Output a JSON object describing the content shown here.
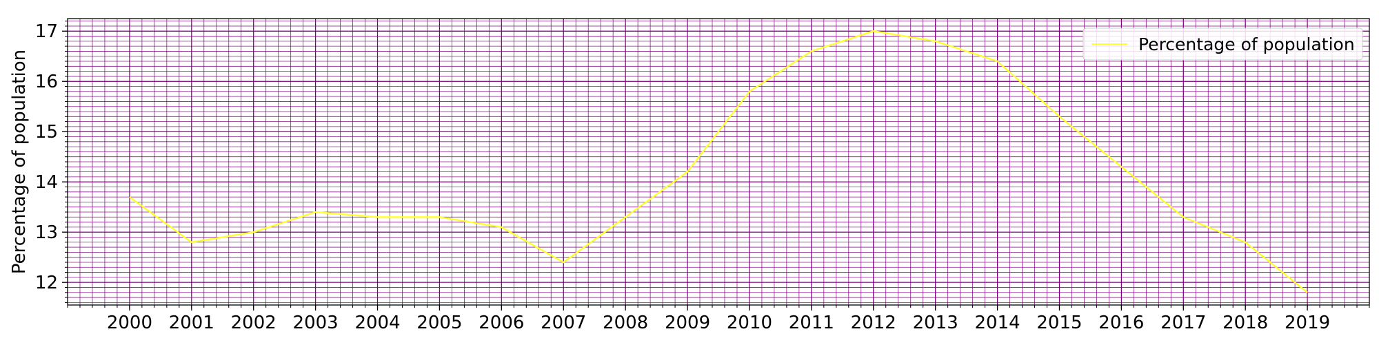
{
  "chart_data": {
    "type": "line",
    "ylabel": "Percentage of population",
    "xlabel": "",
    "categories": [
      "2000",
      "2001",
      "2002",
      "2003",
      "2004",
      "2005",
      "2006",
      "2007",
      "2008",
      "2009",
      "2010",
      "2011",
      "2012",
      "2013",
      "2014",
      "2015",
      "2016",
      "2017",
      "2018",
      "2019"
    ],
    "series": [
      {
        "name": "Percentage of population",
        "color": "#ffff33",
        "values": [
          13.7,
          12.8,
          13.0,
          13.4,
          13.3,
          13.3,
          13.1,
          12.4,
          13.3,
          14.2,
          15.8,
          16.6,
          17.0,
          16.8,
          16.4,
          15.3,
          14.3,
          13.3,
          12.8,
          11.8
        ]
      }
    ],
    "ylim": [
      11.55,
      17.25
    ],
    "xlim": [
      -1,
      20
    ],
    "yticks": [
      12,
      13,
      14,
      15,
      16,
      17
    ],
    "grid": true,
    "grid_minor": true,
    "grid_color": "#800080",
    "legend_position": "upper right"
  }
}
